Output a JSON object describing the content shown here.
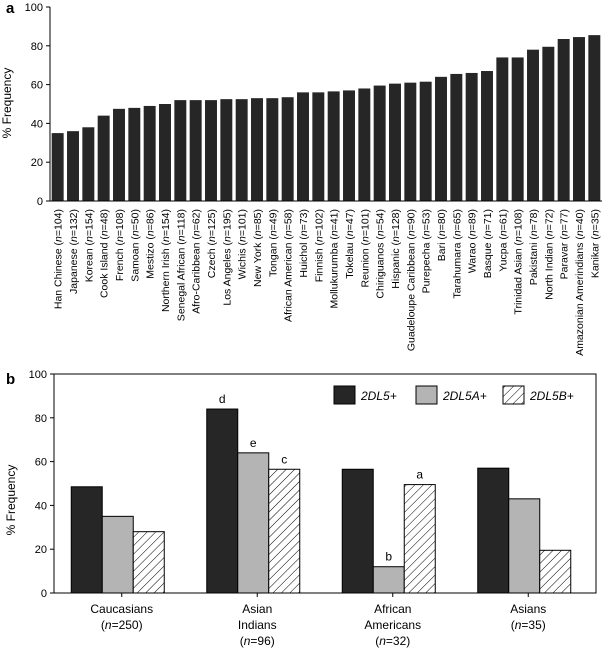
{
  "chart_data": [
    {
      "panel": "a",
      "type": "bar",
      "ylabel": "% Frequency",
      "ylim": [
        0,
        100
      ],
      "yticks": [
        "0",
        "20",
        "40",
        "60",
        "80",
        "100"
      ],
      "grid": false,
      "colors": {
        "bar": "#262626"
      },
      "categories": [
        "Han Chinese (n=104)",
        "Japanese (n=132)",
        "Korean (n=154)",
        "Cook Island (n=48)",
        "French (n=108)",
        "Samoan (n=50)",
        "Mestizo (n=86)",
        "Northern Irish (n=154)",
        "Senegal African (n=118)",
        "Afro-Caribbean (n=62)",
        "Czech (n=125)",
        "Los Angeles (n=195)",
        "Wichis (n=101)",
        "New York (n=85)",
        "Tongan (n=49)",
        "African American (n=58)",
        "Huichol (n=73)",
        "Finnish (n=102)",
        "Mollukurumba (n=41)",
        "Tokelau (n=47)",
        "Reunion (n=101)",
        "Chiriguanos (n=54)",
        "Hispanic (n=128)",
        "Guadeloupe Caribbean (n=90)",
        "Purepecha (n=53)",
        "Bari (n=80)",
        "Tarahumara (n=65)",
        "Warao (n=89)",
        "Basque (n=71)",
        "Yucpa (n=61)",
        "Trinidad Asian (n=108)",
        "Pakistani (n=78)",
        "North Indian (n=72)",
        "Paravar (n=77)",
        "Amazonian Amerindians (n=40)",
        "Kanikar (n=35)"
      ],
      "values": [
        35,
        36,
        38,
        44,
        47.5,
        48,
        49,
        50,
        52,
        52,
        52,
        52.5,
        52.5,
        53,
        53,
        53.5,
        56,
        56,
        56.5,
        57,
        58,
        59.5,
        60.5,
        61,
        61.5,
        64,
        65.5,
        66,
        67,
        74,
        74,
        78,
        79.5,
        83.5,
        84.5,
        85.5
      ]
    },
    {
      "panel": "b",
      "type": "bar",
      "ylabel": "% Frequency",
      "ylim": [
        0,
        100
      ],
      "yticks": [
        "0",
        "20",
        "40",
        "60",
        "80",
        "100"
      ],
      "grid": false,
      "legend_position": "top-right",
      "groups": [
        {
          "name": "Caucasians",
          "n_line": "(n=250)"
        },
        {
          "name": "Asian Indians",
          "n_line": "(n=96)"
        },
        {
          "name": "African Americans",
          "n_line": "(n=32)"
        },
        {
          "name": "Asians",
          "n_line": "(n=35)"
        }
      ],
      "series": [
        {
          "name": "2DL5+",
          "fill": "#262626",
          "values": [
            48.5,
            84,
            56.5,
            57
          ],
          "letters": [
            "",
            "d",
            "",
            ""
          ]
        },
        {
          "name": "2DL5A+",
          "fill": "#b4b4b4",
          "values": [
            35,
            64,
            12,
            43
          ],
          "letters": [
            "",
            "e",
            "b",
            ""
          ]
        },
        {
          "name": "2DL5B+",
          "fill": "hatched",
          "values": [
            28,
            56.5,
            49.5,
            19.5
          ],
          "letters": [
            "",
            "c",
            "a",
            ""
          ]
        }
      ]
    }
  ]
}
